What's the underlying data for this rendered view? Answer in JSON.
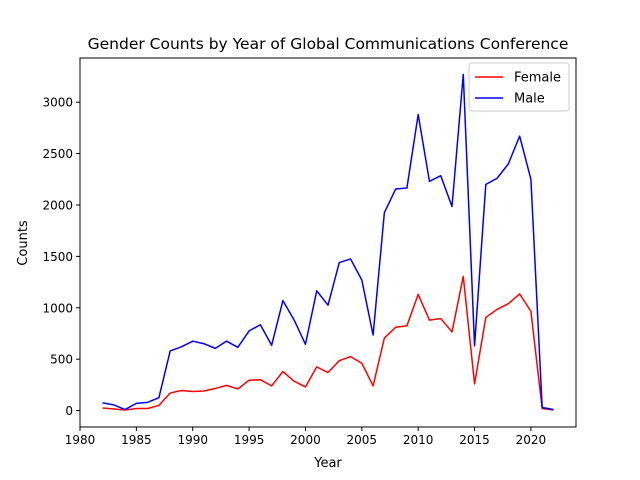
{
  "chart_data": {
    "type": "line",
    "title": "Gender Counts by Year of Global Communications Conference",
    "xlabel": "Year",
    "ylabel": "Counts",
    "xlim": [
      1980,
      2024
    ],
    "ylim": [
      -160,
      3430
    ],
    "xticks": [
      1980,
      1985,
      1990,
      1995,
      2000,
      2005,
      2010,
      2015,
      2020
    ],
    "yticks": [
      0,
      500,
      1000,
      1500,
      2000,
      2500,
      3000
    ],
    "grid": false,
    "legend_position": "upper right",
    "x": [
      1982,
      1983,
      1984,
      1985,
      1986,
      1987,
      1988,
      1989,
      1990,
      1991,
      1992,
      1993,
      1994,
      1995,
      1996,
      1997,
      1998,
      1999,
      2000,
      2001,
      2002,
      2003,
      2004,
      2005,
      2006,
      2007,
      2008,
      2009,
      2010,
      2011,
      2012,
      2013,
      2014,
      2015,
      2016,
      2017,
      2018,
      2019,
      2020,
      2021,
      2022
    ],
    "series": [
      {
        "name": "Female",
        "color": "#ff0000",
        "values": [
          25,
          15,
          5,
          20,
          20,
          50,
          170,
          195,
          185,
          190,
          215,
          245,
          210,
          295,
          300,
          240,
          380,
          285,
          230,
          425,
          370,
          485,
          525,
          460,
          240,
          705,
          810,
          825,
          1130,
          880,
          895,
          765,
          1305,
          260,
          905,
          985,
          1040,
          1135,
          965,
          20,
          5
        ]
      },
      {
        "name": "Male",
        "color": "#0000ff",
        "values": [
          75,
          55,
          10,
          70,
          80,
          125,
          580,
          620,
          675,
          650,
          605,
          675,
          615,
          775,
          835,
          635,
          1070,
          880,
          645,
          1165,
          1025,
          1440,
          1475,
          1270,
          735,
          1925,
          2155,
          2165,
          2880,
          2230,
          2285,
          1985,
          3270,
          630,
          2200,
          2260,
          2400,
          2670,
          2250,
          30,
          10
        ]
      }
    ]
  }
}
